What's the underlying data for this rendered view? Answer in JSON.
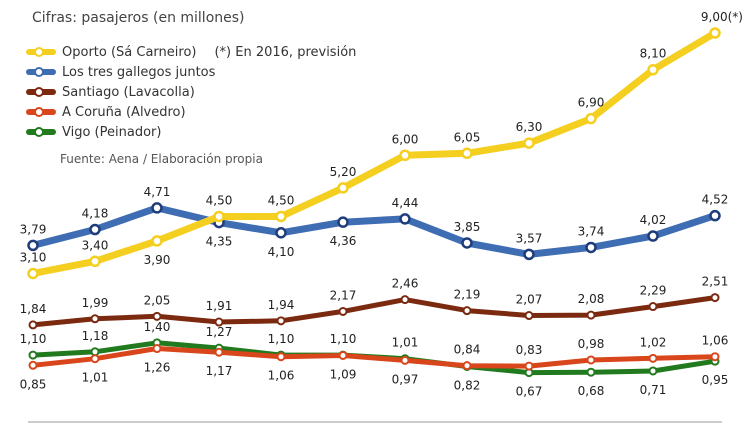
{
  "caption": "Cifras: pasajeros (en millones)",
  "note": "(*) En 2016, previsión",
  "source": "Fuente: Aena / Elaboración propia",
  "chart_data": {
    "type": "line",
    "title": "Cifras: pasajeros (en millones)",
    "xlabel": "",
    "ylabel": "",
    "legend_placement": "top-left",
    "grid": false,
    "ylim": [
      0,
      9.5
    ],
    "series": [
      {
        "name": "Oporto (Sá Carneiro)",
        "color": "#f5cf1f",
        "values": [
          3.1,
          3.4,
          3.9,
          4.5,
          4.5,
          5.2,
          6.0,
          6.05,
          6.3,
          6.9,
          8.1,
          9.0
        ],
        "labels": [
          "3,10",
          "3,40",
          "3,90",
          "4,50",
          "4,50",
          "5,20",
          "6,00",
          "6,05",
          "6,30",
          "6,90",
          "8,10",
          "9,00(*)"
        ],
        "label_pos": [
          "above",
          "above",
          "below",
          "above",
          "above",
          "above",
          "above",
          "above",
          "above",
          "above",
          "above",
          "above"
        ]
      },
      {
        "name": "Los tres gallegos juntos",
        "color": "#3f6db3",
        "values": [
          3.79,
          4.18,
          4.71,
          4.35,
          4.1,
          4.36,
          4.44,
          3.85,
          3.57,
          3.74,
          4.02,
          4.52
        ],
        "labels": [
          "3,79",
          "4,18",
          "4,71",
          "4,35",
          "4,10",
          "4,36",
          "4,44",
          "3,85",
          "3,57",
          "3,74",
          "4,02",
          "4,52"
        ],
        "label_pos": [
          "above",
          "above",
          "above",
          "below",
          "below",
          "below",
          "above",
          "above",
          "above",
          "above",
          "above",
          "above"
        ]
      },
      {
        "name": "Santiago (Lavacolla)",
        "color": "#7b2a10",
        "values": [
          1.84,
          1.99,
          2.05,
          1.91,
          1.94,
          2.17,
          2.46,
          2.19,
          2.07,
          2.08,
          2.29,
          2.51
        ],
        "labels": [
          "1,84",
          "1,99",
          "2,05",
          "1,91",
          "1,94",
          "2,17",
          "2,46",
          "2,19",
          "2,07",
          "2,08",
          "2,29",
          "2,51"
        ],
        "label_pos": [
          "above",
          "above",
          "above",
          "above",
          "above",
          "above",
          "above",
          "above",
          "above",
          "above",
          "above",
          "above"
        ]
      },
      {
        "name": "A Coruña (Alvedro)",
        "color": "#d9461c",
        "values": [
          0.85,
          1.01,
          1.26,
          1.17,
          1.06,
          1.09,
          0.97,
          0.84,
          0.83,
          0.98,
          1.02,
          1.06
        ],
        "labels": [
          "0,85",
          "1,01",
          "1,26",
          "1,17",
          "1,06",
          "1,09",
          "0,97",
          "0,84",
          "0,83",
          "0,98",
          "1,02",
          "1,06"
        ],
        "label_pos": [
          "below",
          "below",
          "below",
          "below",
          "below",
          "below",
          "below",
          "above",
          "above",
          "above",
          "above",
          "above"
        ]
      },
      {
        "name": "Vigo (Peinador)",
        "color": "#217a1e",
        "values": [
          1.1,
          1.18,
          1.4,
          1.27,
          1.1,
          1.1,
          1.01,
          0.82,
          0.67,
          0.68,
          0.71,
          0.95
        ],
        "labels": [
          "1,10",
          "1,18",
          "1,40",
          "1,27",
          "1,10",
          "1,10",
          "1,01",
          "0,82",
          "0,67",
          "0,68",
          "0,71",
          "0,95"
        ],
        "label_pos": [
          "above",
          "above",
          "above",
          "above",
          "above",
          "above",
          "above",
          "below",
          "below",
          "below",
          "below",
          "below"
        ]
      }
    ]
  }
}
